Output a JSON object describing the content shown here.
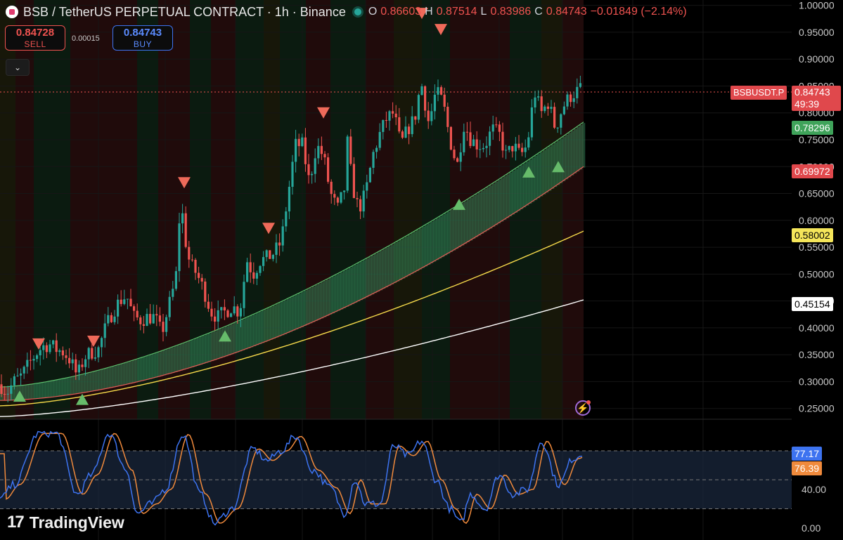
{
  "header": {
    "title": "BSB / TetherUS PERPETUAL CONTRACT · 1h · Binance",
    "ohlc": {
      "o_label": "O",
      "o": "0.86603",
      "h_label": "H",
      "h": "0.87514",
      "l_label": "L",
      "l": "0.83986",
      "c_label": "C",
      "c": "0.84743",
      "change": "−0.01849 (−2.14%)"
    }
  },
  "trade": {
    "sell_price": "0.84728",
    "sell_label": "SELL",
    "spread": "0.00015",
    "buy_price": "0.84743",
    "buy_label": "BUY"
  },
  "brand": "TradingView",
  "price_tags": {
    "symbol": "BSBUSDT.P",
    "last": "0.84743",
    "countdown": "49:39",
    "green_band": "0.78296",
    "red_band": "0.69972",
    "yellow_ma": "0.58002",
    "white_ma": "0.45154",
    "stoch_k": "77.17",
    "stoch_d": "76.39"
  },
  "colors": {
    "up": "#26a69a",
    "down": "#ef5350",
    "bull_band": "#3fa36b",
    "bear_band": "#d9534f",
    "yellow_ma": "#f5d94a",
    "white_ma": "#ffffff",
    "stoch_k": "#3d73f0",
    "stoch_d": "#f08a3c"
  },
  "chart_data": {
    "type": "candlestick",
    "y_axis": {
      "min": 0.23,
      "max": 1.01,
      "ticks": [
        "1.00000",
        "0.95000",
        "0.90000",
        "0.85000",
        "0.80000",
        "0.75000",
        "0.70000",
        "0.65000",
        "0.60000",
        "0.55000",
        "0.50000",
        "0.45000",
        "0.40000",
        "0.35000",
        "0.30000",
        "0.25000"
      ]
    },
    "oscillator_axis": {
      "ticks": [
        "40.00",
        "0.00"
      ],
      "band": [
        20,
        80
      ]
    },
    "overlays": {
      "green_band_last": 0.78296,
      "red_band_last": 0.69972,
      "yellow_ma_last": 0.58002,
      "white_ma_last": 0.45154,
      "last_price": 0.84743
    },
    "close_path": [
      [
        0,
        0.295
      ],
      [
        10,
        0.28
      ],
      [
        20,
        0.3
      ],
      [
        30,
        0.31
      ],
      [
        40,
        0.33
      ],
      [
        50,
        0.35
      ],
      [
        60,
        0.365
      ],
      [
        70,
        0.37
      ],
      [
        80,
        0.36
      ],
      [
        90,
        0.355
      ],
      [
        100,
        0.34
      ],
      [
        110,
        0.31
      ],
      [
        120,
        0.345
      ],
      [
        130,
        0.355
      ],
      [
        140,
        0.36
      ],
      [
        150,
        0.4
      ],
      [
        160,
        0.43
      ],
      [
        170,
        0.45
      ],
      [
        180,
        0.46
      ],
      [
        190,
        0.42
      ],
      [
        200,
        0.415
      ],
      [
        210,
        0.42
      ],
      [
        220,
        0.42
      ],
      [
        230,
        0.39
      ],
      [
        240,
        0.44
      ],
      [
        250,
        0.49
      ],
      [
        255,
        0.6
      ],
      [
        260,
        0.61
      ],
      [
        265,
        0.55
      ],
      [
        270,
        0.52
      ],
      [
        280,
        0.5
      ],
      [
        290,
        0.47
      ],
      [
        300,
        0.43
      ],
      [
        310,
        0.42
      ],
      [
        320,
        0.43
      ],
      [
        330,
        0.44
      ],
      [
        340,
        0.43
      ],
      [
        345,
        0.46
      ],
      [
        350,
        0.53
      ],
      [
        360,
        0.5
      ],
      [
        370,
        0.525
      ],
      [
        380,
        0.53
      ],
      [
        390,
        0.54
      ],
      [
        400,
        0.56
      ],
      [
        410,
        0.65
      ],
      [
        420,
        0.74
      ],
      [
        430,
        0.74
      ],
      [
        440,
        0.67
      ],
      [
        450,
        0.74
      ],
      [
        460,
        0.72
      ],
      [
        470,
        0.65
      ],
      [
        480,
        0.62
      ],
      [
        490,
        0.66
      ],
      [
        495,
        0.76
      ],
      [
        500,
        0.67
      ],
      [
        510,
        0.62
      ],
      [
        520,
        0.65
      ],
      [
        530,
        0.72
      ],
      [
        540,
        0.76
      ],
      [
        550,
        0.79
      ],
      [
        560,
        0.8
      ],
      [
        570,
        0.74
      ],
      [
        580,
        0.77
      ],
      [
        590,
        0.79
      ],
      [
        595,
        0.83
      ],
      [
        600,
        0.85
      ],
      [
        610,
        0.78
      ],
      [
        620,
        0.84
      ],
      [
        630,
        0.82
      ],
      [
        640,
        0.75
      ],
      [
        650,
        0.7
      ],
      [
        660,
        0.78
      ],
      [
        670,
        0.75
      ],
      [
        680,
        0.74
      ],
      [
        690,
        0.74
      ],
      [
        700,
        0.77
      ],
      [
        710,
        0.76
      ],
      [
        720,
        0.72
      ],
      [
        730,
        0.74
      ],
      [
        740,
        0.72
      ],
      [
        750,
        0.74
      ],
      [
        760,
        0.84
      ],
      [
        770,
        0.8
      ],
      [
        780,
        0.82
      ],
      [
        790,
        0.77
      ],
      [
        800,
        0.81
      ],
      [
        810,
        0.83
      ],
      [
        820,
        0.84
      ],
      [
        830,
        0.848
      ]
    ],
    "signals": {
      "down": [
        [
          55,
          0.37
        ],
        [
          133,
          0.375
        ],
        [
          262,
          0.67
        ],
        [
          382,
          0.585
        ],
        [
          460,
          0.8
        ],
        [
          600,
          0.985
        ],
        [
          627,
          0.955
        ]
      ],
      "up": [
        [
          28,
          0.273
        ],
        [
          117,
          0.267
        ],
        [
          320,
          0.385
        ],
        [
          653,
          0.63
        ],
        [
          752,
          0.69
        ],
        [
          794,
          0.7
        ]
      ]
    }
  }
}
